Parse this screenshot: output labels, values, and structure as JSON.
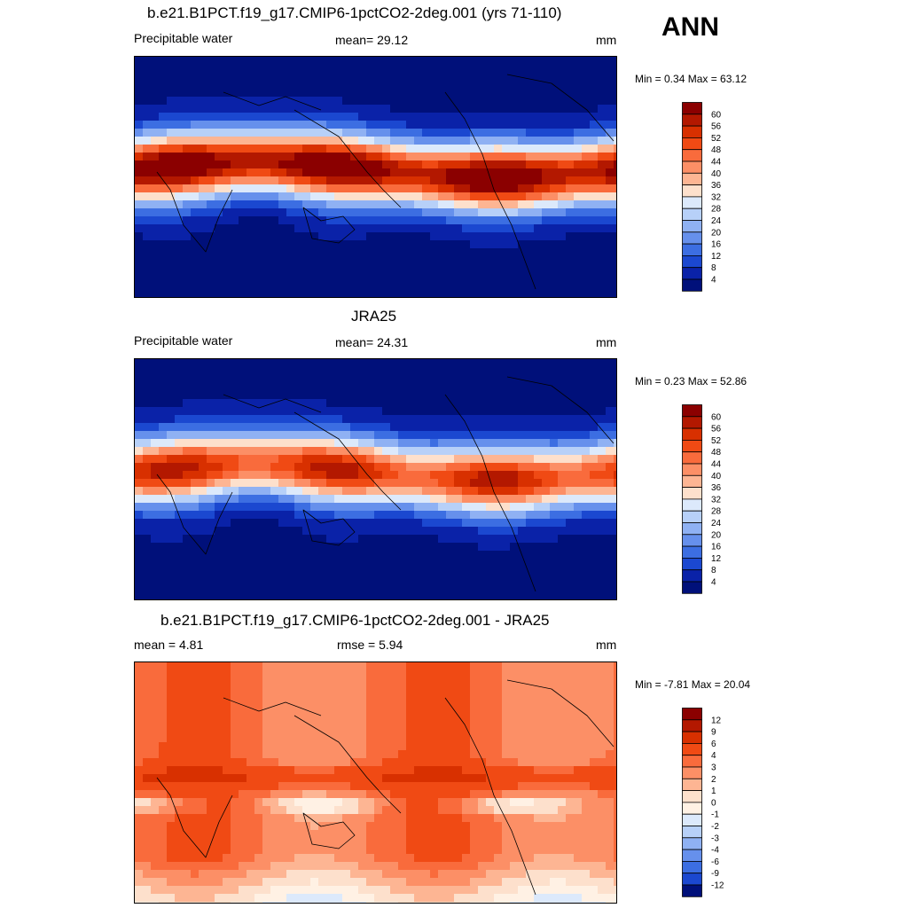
{
  "season": "ANN",
  "panels": [
    {
      "title": "b.e21.B1PCT.f19_g17.CMIP6-1pctCO2-2deg.001 (yrs 71-110)",
      "left": "Precipitable water",
      "center": "mean=  29.12",
      "units": "mm",
      "minmax": "Min =   0.34 Max =  63.12"
    },
    {
      "title": "JRA25",
      "left": "Precipitable water",
      "center": "mean=  24.31",
      "units": "mm",
      "minmax": "Min =   0.23 Max =  52.86"
    },
    {
      "title": "b.e21.B1PCT.f19_g17.CMIP6-1pctCO2-2deg.001 - JRA25",
      "left": "mean =   4.81",
      "center": "rmse =   5.94",
      "units": "mm",
      "minmax": "Min =  -7.81 Max =  20.04"
    }
  ],
  "chart_data": [
    {
      "type": "heatmap",
      "title": "b.e21.B1PCT.f19_g17.CMIP6-1pctCO2-2deg.001 (yrs 71-110)",
      "variable": "Precipitable water",
      "mean": 29.12,
      "units": "mm",
      "min": 0.34,
      "max": 63.12,
      "colorbar_levels": [
        "60",
        "56",
        "52",
        "48",
        "44",
        "40",
        "36",
        "32",
        "28",
        "24",
        "20",
        "16",
        "12",
        "8",
        "4"
      ],
      "colors": [
        "#8b0000",
        "#b31800",
        "#d83000",
        "#f04a14",
        "#f96b3c",
        "#fc8f66",
        "#fdb593",
        "#fde0cc",
        "#dce9fb",
        "#b7d0f8",
        "#8fb1f3",
        "#6690ec",
        "#3c6ee2",
        "#1b48d0",
        "#0a22a8",
        "#00107a"
      ]
    },
    {
      "type": "heatmap",
      "title": "JRA25",
      "variable": "Precipitable water",
      "mean": 24.31,
      "units": "mm",
      "min": 0.23,
      "max": 52.86,
      "colorbar_levels": [
        "60",
        "56",
        "52",
        "48",
        "44",
        "40",
        "36",
        "32",
        "28",
        "24",
        "20",
        "16",
        "12",
        "8",
        "4"
      ],
      "colors": [
        "#8b0000",
        "#b31800",
        "#d83000",
        "#f04a14",
        "#f96b3c",
        "#fc8f66",
        "#fdb593",
        "#fde0cc",
        "#dce9fb",
        "#b7d0f8",
        "#8fb1f3",
        "#6690ec",
        "#3c6ee2",
        "#1b48d0",
        "#0a22a8",
        "#00107a"
      ]
    },
    {
      "type": "heatmap",
      "title": "b.e21.B1PCT.f19_g17.CMIP6-1pctCO2-2deg.001 - JRA25",
      "mean": 4.81,
      "rmse": 5.94,
      "units": "mm",
      "min": -7.81,
      "max": 20.04,
      "colorbar_levels": [
        "12",
        "9",
        "6",
        "4",
        "3",
        "2",
        "1",
        "0",
        "-1",
        "-2",
        "-3",
        "-4",
        "-6",
        "-9",
        "-12"
      ],
      "colors": [
        "#8b0000",
        "#b31800",
        "#d83000",
        "#f04a14",
        "#f96b3c",
        "#fc8f66",
        "#fdb593",
        "#fde0cc",
        "#fff1e4",
        "#dce9fb",
        "#b7d0f8",
        "#8fb1f3",
        "#6690ec",
        "#3c6ee2",
        "#1b48d0",
        "#00107a"
      ]
    }
  ]
}
